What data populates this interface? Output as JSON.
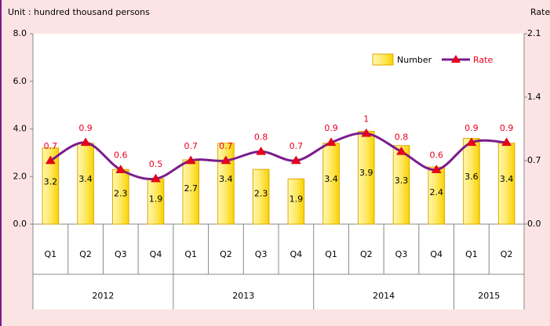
{
  "chart_data": {
    "type": "bar_line",
    "title": "Unit : hundred thousand persons",
    "y2_title": "Rate",
    "category_groups": [
      {
        "name": "2012",
        "categories": [
          "Q1",
          "Q2",
          "Q3",
          "Q4"
        ]
      },
      {
        "name": "2013",
        "categories": [
          "Q1",
          "Q2",
          "Q3",
          "Q4"
        ]
      },
      {
        "name": "2014",
        "categories": [
          "Q1",
          "Q2",
          "Q3",
          "Q4"
        ]
      },
      {
        "name": "2015",
        "categories": [
          "Q1",
          "Q2"
        ]
      }
    ],
    "series": [
      {
        "name": "Number",
        "type": "bar",
        "color": "#ffeb80",
        "values": [
          3.2,
          3.4,
          2.3,
          1.9,
          2.7,
          3.4,
          2.3,
          1.9,
          3.4,
          3.9,
          3.3,
          2.4,
          3.6,
          3.4
        ]
      },
      {
        "name": "Rate",
        "type": "line",
        "axis": "y2",
        "color": "#7b1c8c",
        "marker_color": "#e8001c",
        "values": [
          0.7,
          0.9,
          0.6,
          0.5,
          0.7,
          0.7,
          0.8,
          0.7,
          0.9,
          1.0,
          0.8,
          0.6,
          0.9,
          0.9
        ]
      }
    ],
    "ylim": [
      0,
      8
    ],
    "yticks": [
      {
        "value": 0,
        "label": "0.0"
      },
      {
        "value": 2,
        "label": "2.0"
      },
      {
        "value": 4,
        "label": "4.0"
      },
      {
        "value": 6,
        "label": "6.0"
      },
      {
        "value": 8,
        "label": "8.0"
      }
    ],
    "y2lim": [
      0,
      2.1
    ],
    "y2ticks": [
      {
        "value": 0,
        "label": "0.0"
      },
      0.7,
      1.4,
      2.1
    ],
    "legend": "top-right",
    "grid": false
  }
}
